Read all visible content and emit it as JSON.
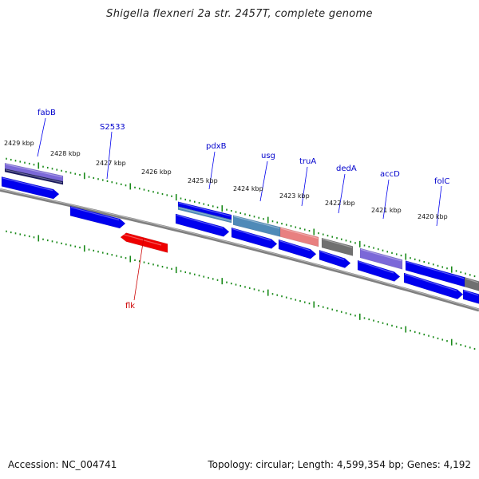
{
  "title": "Shigella flexneri 2a str. 2457T, complete genome",
  "footer": {
    "accession": "Accession: NC_004741",
    "topology": "Topology: circular; Length: 4,599,354 bp; Genes: 4,192"
  },
  "scale_labels": [
    "2429 kbp",
    "2428 kbp",
    "2427 kbp",
    "2426 kbp",
    "2425 kbp",
    "2424 kbp",
    "2423 kbp",
    "2422 kbp",
    "2421 kbp",
    "2420 kbp"
  ],
  "gene_labels": [
    {
      "name": "fabB",
      "color": "#0000cc"
    },
    {
      "name": "S2533",
      "color": "#0000cc"
    },
    {
      "name": "pdxB",
      "color": "#0000cc"
    },
    {
      "name": "usg",
      "color": "#0000cc"
    },
    {
      "name": "truA",
      "color": "#0000cc"
    },
    {
      "name": "dedA",
      "color": "#0000cc"
    },
    {
      "name": "accD",
      "color": "#0000cc"
    },
    {
      "name": "folC",
      "color": "#0000cc"
    },
    {
      "name": "flk",
      "color": "#cc0000"
    }
  ],
  "colors": {
    "cds": "#0000ee",
    "reverse_cds": "#ee0000",
    "tick": "#1a8a1a",
    "backbone": "#808080",
    "feature_purple": "#7b68d8",
    "feature_navy": "#1a1a5e",
    "feature_steelblue": "#4f8ab8",
    "feature_salmon": "#e88080",
    "feature_gray": "#707070"
  }
}
